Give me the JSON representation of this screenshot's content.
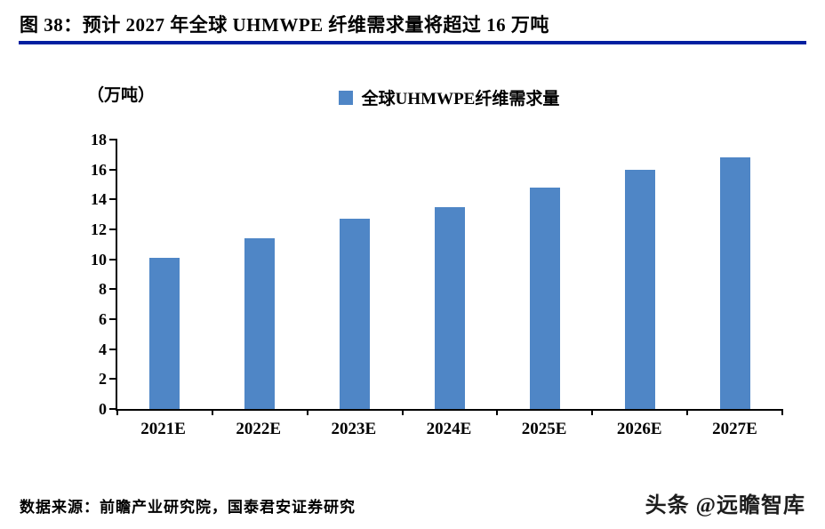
{
  "header": {
    "title": "图 38：预计 2027 年全球 UHMWPE 纤维需求量将超过 16 万吨",
    "accent_color": "#0020A0"
  },
  "chart_data": {
    "type": "bar",
    "title": "预计 2027 年全球 UHMWPE 纤维需求量将超过 16 万吨",
    "unit_label": "（万吨）",
    "legend": "全球UHMWPE纤维需求量",
    "legend_position": "top",
    "categories": [
      "2021E",
      "2022E",
      "2023E",
      "2024E",
      "2025E",
      "2026E",
      "2027E"
    ],
    "values": [
      10.1,
      11.4,
      12.7,
      13.5,
      14.8,
      16.0,
      16.8
    ],
    "xlabel": "",
    "ylabel": "万吨",
    "ylim": [
      0,
      18
    ],
    "ytick_step": 2,
    "grid": false,
    "bar_color": "#4F86C6"
  },
  "footer": {
    "source": "数据来源：前瞻产业研究院，国泰君安证券研究",
    "watermark": "头条 @远瞻智库"
  }
}
